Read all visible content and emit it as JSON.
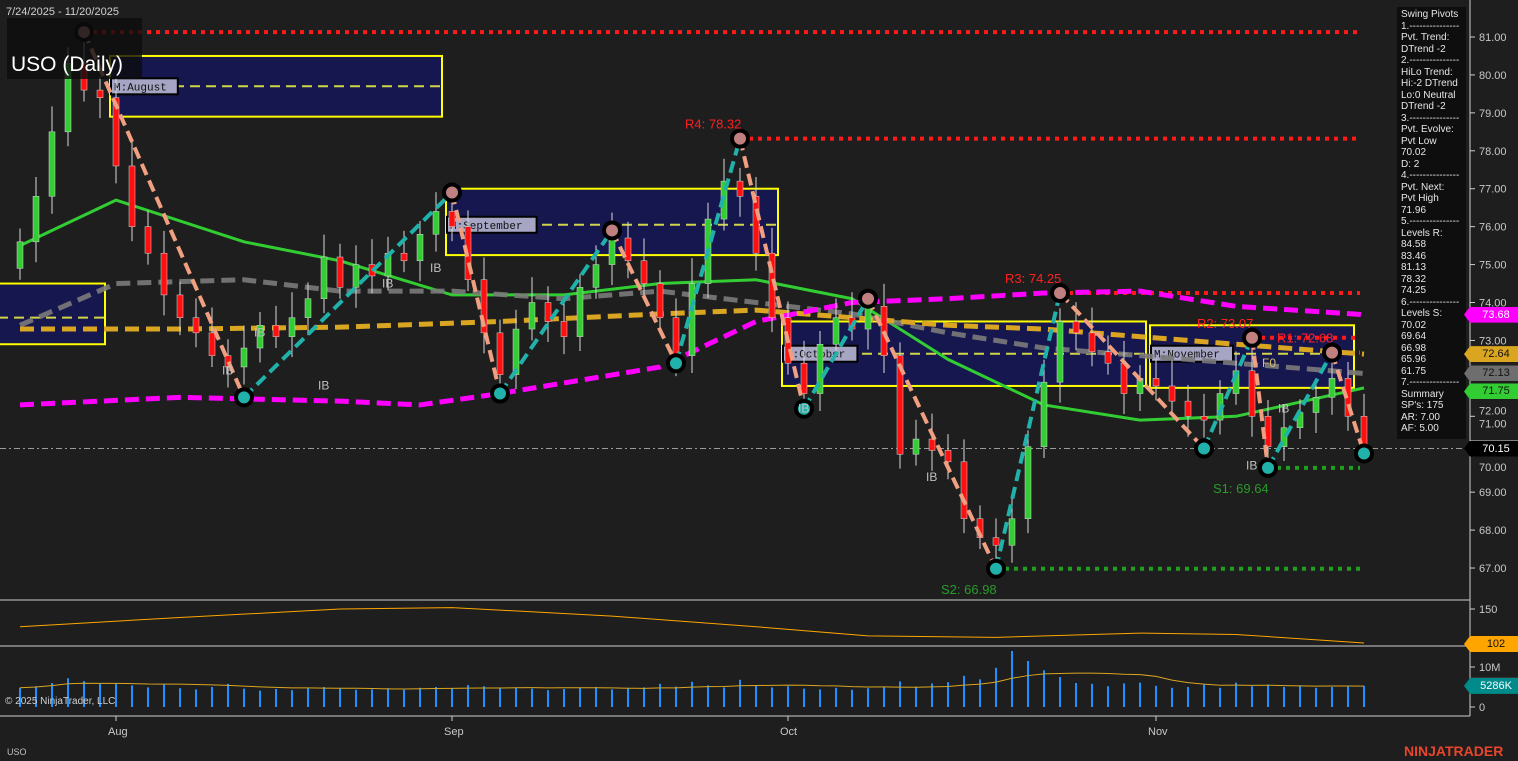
{
  "header": {
    "date_range": "7/24/2025 - 11/20/2025",
    "title": "USO (Daily)",
    "symbol": "USO",
    "copyright": "© 2025 NinjaTrader, LLC",
    "brand": "NINJATRADER"
  },
  "info_panel": {
    "lines": [
      "Swing Pivots",
      "1.---------------",
      "Pvt. Trend:",
      "DTrend -2",
      "2.---------------",
      "HiLo Trend:",
      "Hi:-2 DTrend",
      "Lo:0 Neutral",
      "DTrend -2",
      "3.---------------",
      "Pvt. Evolve:",
      "Pvt Low",
      "70.02",
      "D: 2",
      "4.---------------",
      "Pvt. Next:",
      "Pvt High",
      "71.96",
      "5.---------------",
      "Levels R:",
      "84.58",
      "83.46",
      "81.13",
      "78.32",
      "74.25",
      "6.---------------",
      "Levels S:",
      "70.02",
      "69.64",
      "66.98",
      "65.96",
      "61.75",
      "7.---------------",
      "Summary",
      "SP's: 175",
      "AR: 7.00",
      "AF: 5.00"
    ]
  },
  "chart_data": {
    "type": "candlestick",
    "start_date": "7/24/2025",
    "end_date": "11/20/2025",
    "x_tick_labels": [
      {
        "date": "8/1",
        "label": "Aug"
      },
      {
        "date": "9/2",
        "label": "Sep"
      },
      {
        "date": "10/1",
        "label": "Oct"
      },
      {
        "date": "11/3",
        "label": "Nov"
      }
    ],
    "price_axis": {
      "ylim": [
        66.2,
        81.9
      ],
      "ticks": [
        "67.00",
        "68.00",
        "69.00",
        "70.00",
        "71.00",
        "72.00",
        "73.00",
        "74.00",
        "75.00",
        "76.00",
        "77.00",
        "78.00",
        "79.00",
        "80.00",
        "81.00"
      ]
    },
    "closes": [
      75.6,
      76.8,
      78.5,
      80.3,
      79.6,
      79.4,
      77.6,
      76.0,
      75.3,
      74.2,
      73.6,
      73.2,
      72.6,
      72.3,
      72.8,
      73.4,
      73.1,
      73.6,
      74.1,
      75.2,
      74.4,
      75.0,
      74.7,
      75.3,
      75.1,
      75.8,
      76.4,
      76.0,
      74.6,
      73.2,
      72.1,
      73.3,
      74.0,
      73.5,
      73.1,
      74.4,
      75.0,
      75.7,
      75.1,
      74.5,
      73.6,
      72.6,
      74.5,
      76.2,
      77.2,
      76.8,
      75.3,
      73.6,
      72.4,
      71.6,
      72.9,
      73.6,
      73.3,
      73.9,
      72.6,
      70.0,
      70.4,
      70.1,
      69.8,
      68.3,
      67.8,
      67.6,
      68.3,
      70.2,
      71.9,
      73.5,
      73.2,
      72.7,
      72.4,
      71.6,
      72.0,
      71.8,
      71.4,
      71.0,
      70.9,
      71.6,
      72.2,
      71.0,
      70.2,
      70.7,
      71.1,
      71.5,
      72.0,
      71.0,
      70.15
    ],
    "first_open": 74.9,
    "moving_averages": [
      {
        "color": "#32cd32",
        "style": "solid",
        "points": [
          [
            "7/24",
            75.5
          ],
          [
            "8/1",
            76.7
          ],
          [
            "8/13",
            75.6
          ],
          [
            "8/21",
            75.1
          ],
          [
            "9/2",
            74.2
          ],
          [
            "9/11",
            74.2
          ],
          [
            "9/19",
            74.5
          ],
          [
            "9/29",
            74.6
          ],
          [
            "10/7",
            74.1
          ],
          [
            "10/15",
            72.5
          ],
          [
            "10/23",
            71.3
          ],
          [
            "10/31",
            70.9
          ],
          [
            "11/10",
            71.0
          ],
          [
            "11/20",
            71.75
          ]
        ],
        "last": "71.75"
      },
      {
        "color": "#7a7a7a",
        "style": "dashed",
        "points": [
          [
            "7/24",
            73.4
          ],
          [
            "8/1",
            74.5
          ],
          [
            "8/13",
            74.6
          ],
          [
            "8/21",
            74.3
          ],
          [
            "9/2",
            74.3
          ],
          [
            "9/11",
            74.1
          ],
          [
            "9/19",
            74.3
          ],
          [
            "9/29",
            74.0
          ],
          [
            "10/7",
            73.7
          ],
          [
            "10/15",
            73.2
          ],
          [
            "10/23",
            72.8
          ],
          [
            "10/31",
            72.6
          ],
          [
            "11/10",
            72.4
          ],
          [
            "11/20",
            72.13
          ]
        ],
        "last": "72.13"
      },
      {
        "color": "#daa520",
        "style": "dashed",
        "points": [
          [
            "7/24",
            73.3
          ],
          [
            "8/7",
            73.3
          ],
          [
            "8/21",
            73.35
          ],
          [
            "9/5",
            73.5
          ],
          [
            "9/19",
            73.7
          ],
          [
            "9/29",
            73.8
          ],
          [
            "10/7",
            73.6
          ],
          [
            "10/15",
            73.4
          ],
          [
            "10/23",
            73.3
          ],
          [
            "10/31",
            73.1
          ],
          [
            "11/10",
            72.9
          ],
          [
            "11/20",
            72.64
          ]
        ],
        "last": "72.64"
      },
      {
        "color": "#ff00ff",
        "style": "dashed",
        "points": [
          [
            "7/24",
            71.3
          ],
          [
            "8/7",
            71.5
          ],
          [
            "8/21",
            71.4
          ],
          [
            "8/28",
            71.3
          ],
          [
            "9/5",
            71.6
          ],
          [
            "9/19",
            72.3
          ],
          [
            "9/29",
            73.5
          ],
          [
            "10/7",
            74.0
          ],
          [
            "10/15",
            74.1
          ],
          [
            "10/23",
            74.25
          ],
          [
            "10/31",
            74.3
          ],
          [
            "11/10",
            73.9
          ],
          [
            "11/20",
            73.68
          ]
        ],
        "last": "73.68"
      }
    ],
    "swing_pivots": [
      [
        "7/30",
        81.13
      ],
      [
        "8/13",
        71.5
      ],
      [
        "9/2",
        76.9
      ],
      [
        "9/5",
        71.6
      ],
      [
        "9/16",
        75.9
      ],
      [
        "9/22",
        72.4
      ],
      [
        "9/26",
        78.32
      ],
      [
        "10/2",
        71.2
      ],
      [
        "10/8",
        74.1
      ],
      [
        "10/20",
        66.98
      ],
      [
        "10/24",
        74.25
      ],
      [
        "11/6",
        70.15
      ],
      [
        "11/11",
        73.07
      ],
      [
        "11/12",
        69.64
      ],
      [
        "11/18",
        72.68
      ],
      [
        "11/20",
        70.02
      ]
    ],
    "monthly_boxes": [
      {
        "label": "",
        "from": "7/24",
        "to": "7/31",
        "high": 74.5,
        "low": 72.9,
        "mid": 73.6
      },
      {
        "label": "M:August",
        "from": "8/1",
        "to": "8/29",
        "high": 80.5,
        "low": 78.9,
        "mid": 79.7
      },
      {
        "label": "M:September",
        "from": "9/2",
        "to": "9/30",
        "high": 77.0,
        "low": 75.25,
        "mid": 76.05
      },
      {
        "label": "M:October",
        "from": "10/1",
        "to": "10/31",
        "high": 73.5,
        "low": 71.8,
        "mid": 72.65
      },
      {
        "label": "M:November",
        "from": "11/3",
        "to": "11/19",
        "high": 73.4,
        "low": 71.75,
        "mid": 72.65
      }
    ],
    "levels": [
      {
        "label": "",
        "price": 81.13,
        "from": "7/30",
        "type": "R"
      },
      {
        "label": "R4: 78.32",
        "price": 78.32,
        "from": "9/26",
        "type": "R"
      },
      {
        "label": "R3: 74.25",
        "price": 74.25,
        "from": "10/24",
        "type": "R"
      },
      {
        "label": "R2: 73.07",
        "price": 73.07,
        "from": "11/11",
        "type": "R"
      },
      {
        "label": "R1: 72.68",
        "price": 72.68,
        "from": "11/18",
        "type": "R"
      },
      {
        "label": "S1: 69.64",
        "price": 69.64,
        "from": "11/12",
        "type": "S"
      },
      {
        "label": "S2: 66.98",
        "price": 66.98,
        "from": "10/20",
        "type": "S"
      }
    ],
    "last_price": {
      "value": 70.15,
      "label": "70.15"
    },
    "annotations": [
      [
        "8/12",
        "IB",
        72.1
      ],
      [
        "8/14",
        "IB",
        73.1
      ],
      [
        "8/20",
        "IB",
        71.7
      ],
      [
        "8/26",
        "IB",
        74.4
      ],
      [
        "8/29",
        "IB",
        74.8
      ],
      [
        "10/2",
        "IB",
        71.1
      ],
      [
        "10/14",
        "IB",
        69.3
      ],
      [
        "11/13",
        "IB",
        71.1
      ],
      [
        "11/11",
        "IB",
        69.6
      ],
      [
        "11/12",
        "F0",
        72.3
      ]
    ],
    "oscillator": {
      "ticks": [
        "150"
      ],
      "ylim": [
        95,
        160
      ],
      "points": [
        [
          "7/24",
          125
        ],
        [
          "8/7",
          138
        ],
        [
          "8/21",
          150
        ],
        [
          "9/2",
          152
        ],
        [
          "9/16",
          140
        ],
        [
          "9/29",
          125
        ],
        [
          "10/8",
          112
        ],
        [
          "10/20",
          110
        ],
        [
          "10/31",
          116
        ],
        [
          "11/10",
          114
        ],
        [
          "11/20",
          102
        ]
      ],
      "last": "102",
      "color": "#ffa500"
    },
    "volume": {
      "ticks": [
        "10M",
        "0"
      ],
      "unit": "M",
      "last": "5286K",
      "color": "#1e90ff",
      "avg_color": "#daa520",
      "values": [
        4.8,
        5.2,
        6.0,
        7.2,
        6.5,
        5.8,
        5.9,
        5.4,
        4.9,
        5.6,
        4.7,
        4.4,
        5.0,
        5.8,
        4.6,
        4.1,
        4.5,
        4.2,
        4.8,
        5.0,
        4.6,
        4.3,
        4.4,
        4.7,
        4.3,
        4.8,
        5.0,
        4.6,
        5.5,
        5.2,
        4.7,
        4.9,
        4.6,
        4.2,
        4.5,
        4.8,
        5.0,
        4.4,
        4.6,
        4.9,
        5.8,
        5.1,
        6.3,
        5.4,
        4.9,
        6.8,
        5.5,
        4.9,
        5.2,
        4.6,
        4.4,
        4.8,
        4.3,
        4.7,
        5.0,
        6.4,
        5.1,
        5.9,
        6.2,
        7.8,
        6.9,
        9.8,
        14.0,
        11.5,
        9.2,
        7.5,
        6.0,
        5.8,
        5.2,
        5.9,
        6.1,
        5.3,
        4.8,
        5.0,
        5.6,
        4.8,
        6.1,
        5.2,
        5.6,
        5.0,
        5.4,
        4.8,
        5.0,
        5.1,
        5.3
      ]
    }
  }
}
